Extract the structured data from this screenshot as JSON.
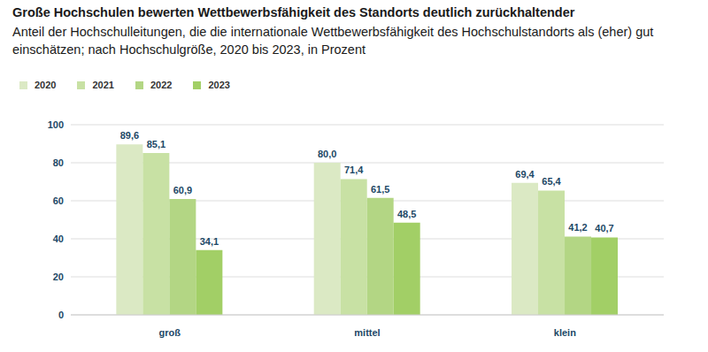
{
  "chart_data": {
    "type": "bar",
    "title": "Große Hochschulen bewerten Wettbewerbsfähigkeit des Standorts deutlich zurückhaltender",
    "subtitle": "Anteil der Hochschulleitungen, die die internationale Wettbewerbsfähigkeit des Hochschulstandorts als (eher) gut einschätzen; nach Hochschulgröße, 2020 bis 2023, in Prozent",
    "categories": [
      "groß",
      "mittel",
      "klein"
    ],
    "series": [
      {
        "name": "2020",
        "color": "#dbe9c4",
        "values": [
          89.6,
          80.0,
          69.4
        ],
        "value_labels": [
          "89,6",
          "80,0",
          "69,4"
        ]
      },
      {
        "name": "2021",
        "color": "#c8e1a4",
        "values": [
          85.1,
          71.4,
          65.4
        ],
        "value_labels": [
          "85,1",
          "71,4",
          "65,4"
        ]
      },
      {
        "name": "2022",
        "color": "#b3d684",
        "values": [
          60.9,
          61.5,
          41.2
        ],
        "value_labels": [
          "60,9",
          "61,5",
          "41,2"
        ]
      },
      {
        "name": "2023",
        "color": "#a2cf66",
        "values": [
          34.1,
          48.5,
          40.7
        ],
        "value_labels": [
          "34,1",
          "48,5",
          "40,7"
        ]
      }
    ],
    "ylim": [
      0,
      100
    ],
    "yticks": [
      0,
      20,
      40,
      60,
      80,
      100
    ],
    "grid": true,
    "data_labels": true,
    "legend": "top-left"
  }
}
